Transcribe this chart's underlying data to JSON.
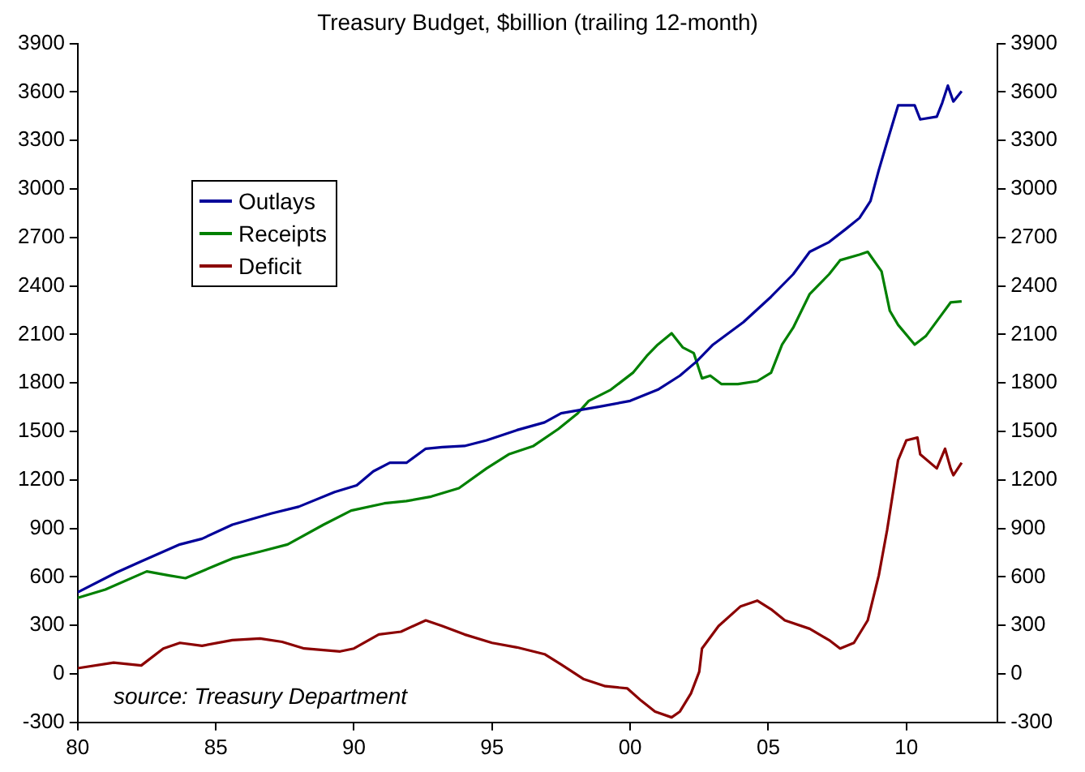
{
  "chart_data": {
    "type": "line",
    "title": "Treasury Budget, $billion (trailing 12-month)",
    "xlim": [
      1980,
      2013.3
    ],
    "xticks": [
      {
        "value": 1980,
        "label": "80"
      },
      {
        "value": 1985,
        "label": "85"
      },
      {
        "value": 1990,
        "label": "90"
      },
      {
        "value": 1995,
        "label": "95"
      },
      {
        "value": 2000,
        "label": "00"
      },
      {
        "value": 2005,
        "label": "05"
      },
      {
        "value": 2010,
        "label": "10"
      }
    ],
    "ylim": [
      -300,
      3900
    ],
    "yticks": [
      -300,
      0,
      300,
      600,
      900,
      1200,
      1500,
      1800,
      2100,
      2400,
      2700,
      3000,
      3300,
      3600,
      3900
    ],
    "y2lim": [
      -300,
      3900
    ],
    "y2ticks": [
      -300,
      0,
      300,
      600,
      900,
      1200,
      1500,
      1800,
      2100,
      2400,
      2700,
      3000,
      3300,
      3600,
      3900
    ],
    "grid": false,
    "legend": "top left",
    "marker": "none",
    "line_style": "solid",
    "annotations": [
      "source: Treasury Department"
    ],
    "series": [
      {
        "name": "Outlays",
        "color": "#000099",
        "x": [
          1980,
          1981.4,
          1982.3,
          1983.7,
          1984.5,
          1985.6,
          1987,
          1988,
          1989.3,
          1990.1,
          1990.7,
          1991.3,
          1991.9,
          1992.6,
          1993.2,
          1994,
          1994.8,
          1995.9,
          1996.9,
          1997.5,
          1998.9,
          2000,
          2001,
          2001.8,
          2002.4,
          2003,
          2004.1,
          2005.1,
          2005.9,
          2006.5,
          2007.2,
          2007.8,
          2008.3,
          2008.7,
          2009,
          2009.3,
          2009.7,
          2010.3,
          2010.5,
          2011.1,
          2011.3,
          2011.5,
          2011.7,
          2012
        ],
        "values": [
          505,
          627,
          696,
          801,
          836,
          923,
          992,
          1034,
          1125,
          1166,
          1253,
          1306,
          1306,
          1393,
          1403,
          1410,
          1445,
          1508,
          1556,
          1612,
          1654,
          1689,
          1758,
          1845,
          1932,
          2037,
          2176,
          2333,
          2472,
          2611,
          2671,
          2751,
          2820,
          2925,
          3116,
          3290,
          3517,
          3517,
          3430,
          3447,
          3534,
          3639,
          3541,
          3604
        ]
      },
      {
        "name": "Receipts",
        "color": "#008000",
        "x": [
          1980,
          1981,
          1982.5,
          1983.3,
          1983.9,
          1985.1,
          1985.6,
          1986.6,
          1987.6,
          1988.9,
          1989.9,
          1991.1,
          1991.9,
          1992.8,
          1993.8,
          1994.8,
          1995.6,
          1996.5,
          1997.4,
          1998.1,
          1998.5,
          1999.3,
          2000.1,
          2000.6,
          2001,
          2001.5,
          2001.9,
          2002.3,
          2002.6,
          2002.9,
          2003.3,
          2003.9,
          2004.6,
          2005.1,
          2005.5,
          2005.9,
          2006.5,
          2007.2,
          2007.6,
          2008.3,
          2008.6,
          2009.1,
          2009.4,
          2009.7,
          2010.3,
          2010.7,
          2011.3,
          2011.6,
          2012
        ],
        "values": [
          470,
          522,
          634,
          609,
          592,
          679,
          714,
          756,
          801,
          923,
          1010,
          1055,
          1069,
          1097,
          1149,
          1271,
          1358,
          1410,
          1515,
          1612,
          1689,
          1758,
          1863,
          1967,
          2037,
          2107,
          2020,
          1985,
          1828,
          1845,
          1793,
          1793,
          1811,
          1863,
          2037,
          2141,
          2350,
          2472,
          2559,
          2594,
          2611,
          2490,
          2246,
          2159,
          2037,
          2089,
          2228,
          2298,
          2305
        ]
      },
      {
        "name": "Deficit",
        "color": "#8b0000",
        "x": [
          1980,
          1981.3,
          1982.3,
          1983.1,
          1983.7,
          1984.5,
          1985.6,
          1986.6,
          1987.4,
          1988.2,
          1989.5,
          1990,
          1990.9,
          1991.7,
          1992.6,
          1993.2,
          1994,
          1995,
          1995.9,
          1996.9,
          1997.5,
          1998.3,
          1999.1,
          1999.9,
          2000.4,
          2000.9,
          2001.5,
          2001.8,
          2002.2,
          2002.5,
          2002.6,
          2003.2,
          2004,
          2004.6,
          2005.1,
          2005.6,
          2006.5,
          2007.2,
          2007.6,
          2008.1,
          2008.6,
          2009,
          2009.3,
          2009.7,
          2010,
          2010.4,
          2010.5,
          2011.1,
          2011.4,
          2011.6,
          2011.7,
          2012
        ],
        "values": [
          35,
          70,
          52,
          157,
          192,
          174,
          209,
          219,
          198,
          157,
          139,
          157,
          244,
          261,
          331,
          296,
          244,
          192,
          164,
          122,
          58,
          -31,
          -76,
          -90,
          -166,
          -233,
          -269,
          -233,
          -121,
          13,
          157,
          296,
          418,
          453,
          400,
          331,
          279,
          209,
          157,
          192,
          331,
          609,
          888,
          1323,
          1445,
          1462,
          1358,
          1271,
          1393,
          1271,
          1229,
          1306
        ]
      }
    ]
  }
}
